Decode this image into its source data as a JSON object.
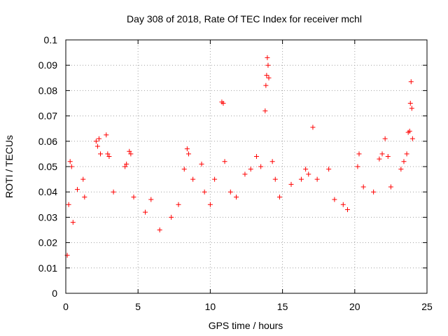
{
  "chart_data": {
    "type": "scatter",
    "title": "Day 308 of 2018, Rate Of TEC Index for receiver mchl",
    "xlabel": "GPS time / hours",
    "ylabel": "ROTI / TECUs",
    "xlim": [
      0,
      25
    ],
    "ylim": [
      0,
      0.1
    ],
    "x_ticks": [
      "0",
      "5",
      "10",
      "15",
      "20",
      "25"
    ],
    "y_ticks": [
      "0",
      "0.01",
      "0.02",
      "0.03",
      "0.04",
      "0.05",
      "0.06",
      "0.07",
      "0.08",
      "0.09",
      "0.1"
    ],
    "grid": true,
    "legend": "none",
    "marker": "+",
    "marker_color": "#ff0000",
    "series": [
      {
        "points": [
          [
            0.1,
            0.015
          ],
          [
            0.2,
            0.035
          ],
          [
            0.3,
            0.052
          ],
          [
            0.4,
            0.05
          ],
          [
            0.5,
            0.028
          ],
          [
            0.8,
            0.041
          ],
          [
            1.2,
            0.045
          ],
          [
            1.3,
            0.038
          ],
          [
            2.1,
            0.06
          ],
          [
            2.2,
            0.058
          ],
          [
            2.3,
            0.061
          ],
          [
            2.4,
            0.055
          ],
          [
            2.8,
            0.0625
          ],
          [
            2.9,
            0.055
          ],
          [
            3.0,
            0.054
          ],
          [
            3.3,
            0.04
          ],
          [
            4.1,
            0.05
          ],
          [
            4.2,
            0.051
          ],
          [
            4.4,
            0.056
          ],
          [
            4.5,
            0.055
          ],
          [
            4.7,
            0.038
          ],
          [
            5.5,
            0.032
          ],
          [
            5.9,
            0.037
          ],
          [
            6.5,
            0.025
          ],
          [
            7.3,
            0.03
          ],
          [
            7.8,
            0.035
          ],
          [
            8.2,
            0.049
          ],
          [
            8.4,
            0.057
          ],
          [
            8.5,
            0.055
          ],
          [
            8.8,
            0.045
          ],
          [
            9.4,
            0.051
          ],
          [
            9.6,
            0.04
          ],
          [
            10.0,
            0.035
          ],
          [
            10.3,
            0.045
          ],
          [
            10.8,
            0.0755
          ],
          [
            10.9,
            0.075
          ],
          [
            11.0,
            0.052
          ],
          [
            11.4,
            0.04
          ],
          [
            11.8,
            0.038
          ],
          [
            12.4,
            0.047
          ],
          [
            12.8,
            0.049
          ],
          [
            13.2,
            0.054
          ],
          [
            13.5,
            0.05
          ],
          [
            13.8,
            0.072
          ],
          [
            13.85,
            0.082
          ],
          [
            13.9,
            0.086
          ],
          [
            13.95,
            0.093
          ],
          [
            14.0,
            0.09
          ],
          [
            14.05,
            0.085
          ],
          [
            14.3,
            0.052
          ],
          [
            14.5,
            0.045
          ],
          [
            14.8,
            0.038
          ],
          [
            15.6,
            0.043
          ],
          [
            16.3,
            0.045
          ],
          [
            16.6,
            0.049
          ],
          [
            16.8,
            0.047
          ],
          [
            17.1,
            0.0655
          ],
          [
            17.4,
            0.045
          ],
          [
            18.2,
            0.049
          ],
          [
            18.6,
            0.037
          ],
          [
            19.2,
            0.035
          ],
          [
            19.5,
            0.033
          ],
          [
            20.2,
            0.05
          ],
          [
            20.3,
            0.055
          ],
          [
            20.6,
            0.042
          ],
          [
            21.3,
            0.04
          ],
          [
            21.7,
            0.053
          ],
          [
            21.9,
            0.055
          ],
          [
            22.1,
            0.061
          ],
          [
            22.3,
            0.054
          ],
          [
            22.5,
            0.042
          ],
          [
            23.2,
            0.049
          ],
          [
            23.4,
            0.052
          ],
          [
            23.6,
            0.055
          ],
          [
            23.7,
            0.0635
          ],
          [
            23.8,
            0.064
          ],
          [
            23.85,
            0.075
          ],
          [
            23.9,
            0.0835
          ],
          [
            23.95,
            0.073
          ],
          [
            24.0,
            0.061
          ]
        ]
      }
    ]
  }
}
